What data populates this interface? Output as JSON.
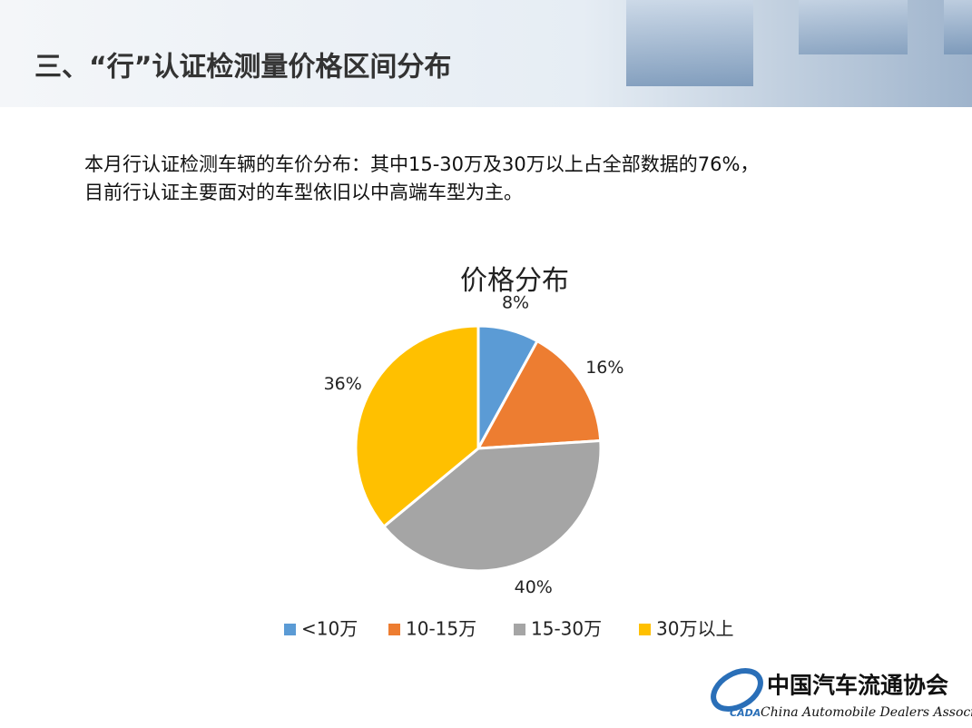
{
  "header": {
    "title": "三、“行”认证检测量价格区间分布"
  },
  "body": {
    "lines": [
      "本月行认证检测车辆的车价分布：其中15-30万及30万以上占全部数据的76%，",
      "目前行认证主要面对的车型依旧以中高端车型为主。"
    ]
  },
  "chart_data": {
    "type": "pie",
    "title": "价格分布",
    "categories": [
      "<10万",
      "10-15万",
      "15-30万",
      "30万以上"
    ],
    "values": [
      8,
      16,
      40,
      36
    ],
    "value_labels": [
      "8%",
      "16%",
      "40%",
      "36%"
    ],
    "colors": [
      "#5b9bd5",
      "#ed7d31",
      "#a5a5a5",
      "#ffc000"
    ],
    "legend": "bottom"
  },
  "logo": {
    "name": "中国汽车流通协会",
    "english": "China Automobile Dealers Association",
    "abbr": "CADA"
  }
}
